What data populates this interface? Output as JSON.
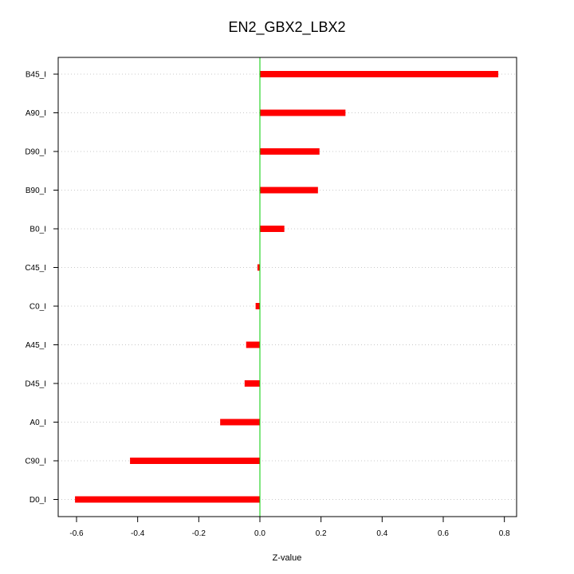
{
  "chart_data": {
    "type": "bar",
    "orientation": "horizontal",
    "title": "EN2_GBX2_LBX2",
    "xlabel": "Z-value",
    "ylabel": "",
    "categories": [
      "B45_I",
      "A90_I",
      "D90_I",
      "B90_I",
      "B0_I",
      "C45_I",
      "C0_I",
      "A45_I",
      "D45_I",
      "A0_I",
      "C90_I",
      "D0_I"
    ],
    "values": [
      0.78,
      0.28,
      0.195,
      0.19,
      0.08,
      -0.008,
      -0.014,
      -0.045,
      -0.05,
      -0.13,
      -0.425,
      -0.605
    ],
    "xlim": [
      -0.66,
      0.84
    ],
    "xticks": [
      -0.6,
      -0.4,
      -0.2,
      0.0,
      0.2,
      0.4,
      0.6,
      0.8
    ],
    "xtick_labels": [
      "-0.6",
      "-0.4",
      "-0.2",
      "0.0",
      "0.2",
      "0.4",
      "0.6",
      "0.8"
    ],
    "reference_line": 0.0,
    "grid": "horizontal dotted",
    "colors": {
      "bar": "#ff0000",
      "reference_line": "#00cc00",
      "grid": "#c8c8c8",
      "axis": "#000000"
    }
  }
}
